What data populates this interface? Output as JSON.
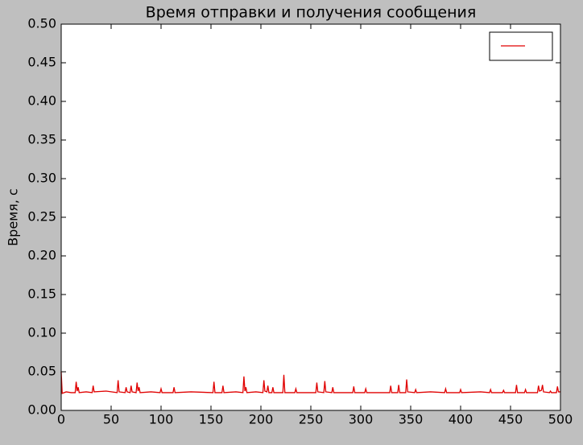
{
  "chart_data": {
    "type": "line",
    "title": "Время отправки и получения сообщения",
    "y_label": "Время, с",
    "x": [
      0,
      1,
      5,
      10,
      14,
      15,
      16,
      17,
      18,
      25,
      31,
      32,
      33,
      45,
      56,
      57,
      58,
      64,
      65,
      66,
      69,
      70,
      71,
      75,
      76,
      77,
      78,
      79,
      90,
      99,
      100,
      101,
      112,
      113,
      114,
      130,
      152,
      153,
      154,
      161,
      162,
      163,
      175,
      182,
      183,
      184,
      185,
      186,
      195,
      202,
      203,
      204,
      206,
      207,
      208,
      211,
      212,
      213,
      222,
      223,
      224,
      234,
      235,
      236,
      255,
      256,
      257,
      263,
      264,
      265,
      271,
      272,
      273,
      292,
      293,
      294,
      304,
      305,
      306,
      329,
      330,
      331,
      337,
      338,
      339,
      345,
      346,
      347,
      354,
      355,
      356,
      370,
      384,
      385,
      386,
      399,
      400,
      401,
      420,
      429,
      430,
      431,
      442,
      443,
      444,
      455,
      456,
      457,
      464,
      465,
      466,
      477,
      478,
      479,
      481,
      482,
      483,
      489,
      490,
      491,
      496,
      497,
      498,
      499,
      500
    ],
    "series": [
      {
        "color": "#e00000",
        "values": [
          0.05,
          0.022,
          0.024,
          0.023,
          0.023,
          0.037,
          0.025,
          0.03,
          0.023,
          0.024,
          0.023,
          0.032,
          0.024,
          0.025,
          0.023,
          0.039,
          0.024,
          0.023,
          0.03,
          0.024,
          0.023,
          0.032,
          0.024,
          0.023,
          0.036,
          0.025,
          0.03,
          0.023,
          0.024,
          0.023,
          0.028,
          0.023,
          0.023,
          0.03,
          0.023,
          0.024,
          0.023,
          0.037,
          0.023,
          0.023,
          0.032,
          0.023,
          0.024,
          0.023,
          0.044,
          0.025,
          0.03,
          0.023,
          0.024,
          0.023,
          0.039,
          0.025,
          0.024,
          0.032,
          0.023,
          0.023,
          0.03,
          0.023,
          0.023,
          0.046,
          0.023,
          0.023,
          0.028,
          0.023,
          0.023,
          0.036,
          0.024,
          0.023,
          0.038,
          0.024,
          0.023,
          0.03,
          0.023,
          0.023,
          0.031,
          0.023,
          0.023,
          0.028,
          0.023,
          0.023,
          0.032,
          0.023,
          0.023,
          0.033,
          0.023,
          0.023,
          0.04,
          0.024,
          0.023,
          0.027,
          0.023,
          0.024,
          0.023,
          0.028,
          0.023,
          0.023,
          0.027,
          0.023,
          0.024,
          0.023,
          0.027,
          0.023,
          0.023,
          0.026,
          0.023,
          0.023,
          0.033,
          0.023,
          0.023,
          0.027,
          0.023,
          0.023,
          0.032,
          0.025,
          0.026,
          0.033,
          0.024,
          0.023,
          0.025,
          0.023,
          0.023,
          0.031,
          0.024,
          0.024,
          0.024
        ]
      }
    ],
    "xlim": [
      0,
      500
    ],
    "xticks": [
      0,
      50,
      100,
      150,
      200,
      250,
      300,
      350,
      400,
      450,
      500
    ],
    "ylim": [
      0,
      0.5
    ],
    "yticks": [
      {
        "value": 0,
        "label": "0.00"
      },
      {
        "value": 0.05,
        "label": "0.05"
      },
      {
        "value": 0.1,
        "label": "0.10"
      },
      {
        "value": 0.15,
        "label": "0.15"
      },
      {
        "value": 0.2,
        "label": "0.20"
      },
      {
        "value": 0.25,
        "label": "0.25"
      },
      {
        "value": 0.3,
        "label": "0.30"
      },
      {
        "value": 0.35,
        "label": "0.35"
      },
      {
        "value": 0.4,
        "label": "0.40"
      },
      {
        "value": 0.45,
        "label": "0.45"
      },
      {
        "value": 0.5,
        "label": "0.50"
      }
    ],
    "grid": false,
    "legend": "upper right"
  }
}
